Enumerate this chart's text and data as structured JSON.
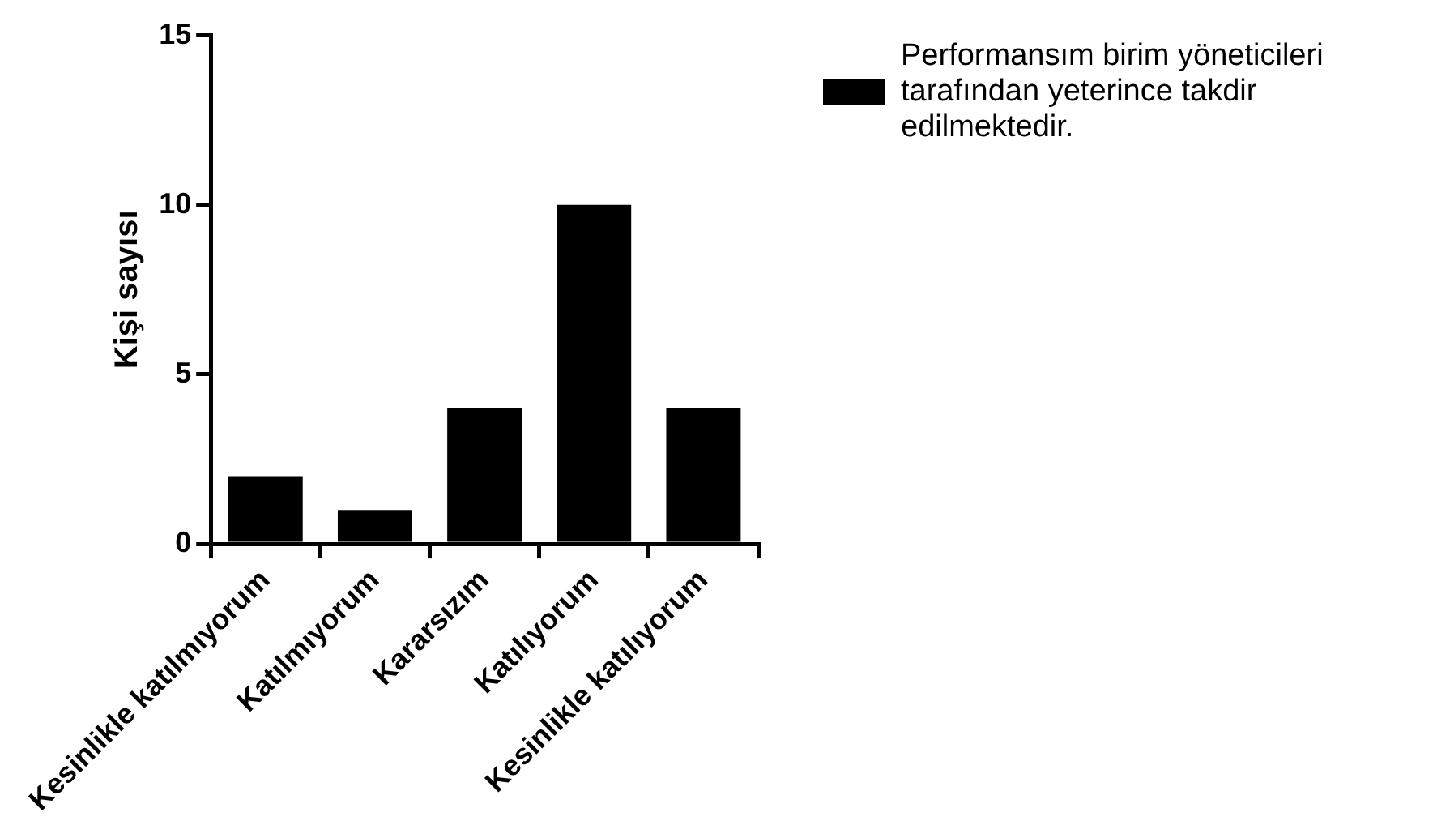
{
  "chart_data": {
    "type": "bar",
    "ylabel": "Kişi sayısı",
    "categories": [
      "Kesinlikle katılmıyorum",
      "Katılmıyorum",
      "Kararsızım",
      "Katılıyorum",
      "Kesinlikle katılıyorum"
    ],
    "series": [
      {
        "name": "Performansım birim yöneticileri tarafından yeterince takdir edilmektedir.",
        "color": "#000000",
        "values": [
          2,
          1,
          4,
          10,
          4
        ]
      }
    ],
    "ylim": [
      0,
      15
    ],
    "yticks": [
      0,
      5,
      10,
      15
    ],
    "grid": false,
    "legend": "right"
  }
}
